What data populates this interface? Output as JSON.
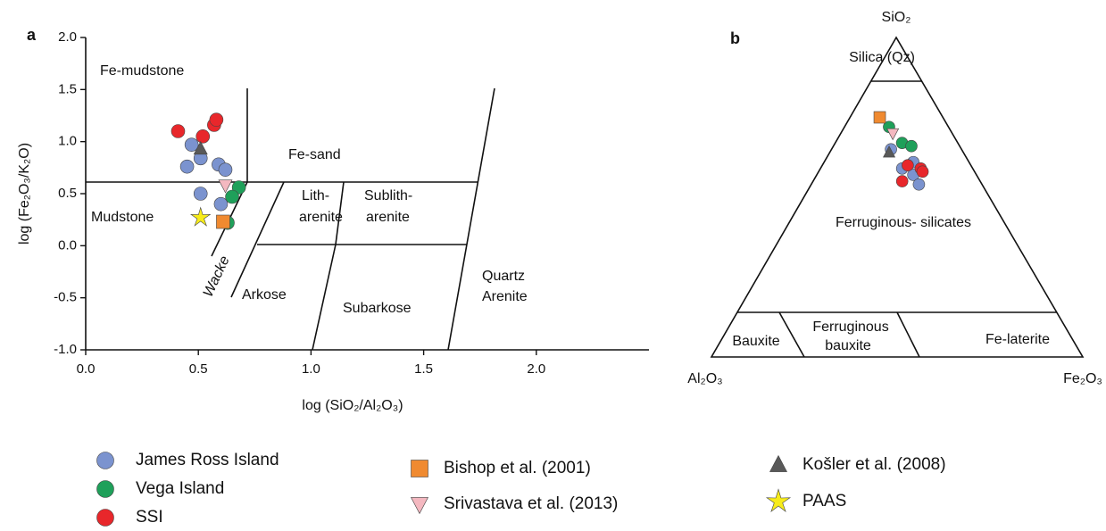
{
  "chart_data": [
    {
      "type": "scatter",
      "panel": "a",
      "xlabel": "log (SiO₂/Al₂O₃)",
      "ylabel": "log (Fe₂O₃/K₂O)",
      "xlim": [
        0,
        2.5
      ],
      "ylim": [
        -1.0,
        2.0
      ],
      "xticks": [
        {
          "value": 0,
          "label": "0.0"
        },
        0.5,
        {
          "value": 1,
          "label": "1.0"
        },
        1.5,
        {
          "value": 2,
          "label": "2.0"
        }
      ],
      "yticks": [
        {
          "value": 2,
          "label": "2.0"
        },
        1.5,
        {
          "value": 1,
          "label": "1.0"
        },
        0.5,
        {
          "value": 0,
          "label": "0.0"
        },
        -0.5,
        {
          "value": -1,
          "label": "-1.0"
        }
      ],
      "annotations": [
        "Fe-mudstone",
        "Fe-sand",
        "Mudstone",
        [
          "Lith-",
          "arenite"
        ],
        [
          "Sublith-",
          "arenite"
        ],
        "Wacke",
        "Arkose",
        "Subarkose",
        [
          "Quartz",
          "Arenite"
        ]
      ],
      "series": [
        {
          "name": "James Ross Island",
          "color": "#7b93cf",
          "marker": "circle",
          "x": [
            0.47,
            0.51,
            0.45,
            0.59,
            0.62,
            0.51,
            0.6
          ],
          "y": [
            0.97,
            0.84,
            0.76,
            0.78,
            0.73,
            0.5,
            0.4
          ]
        },
        {
          "name": "Vega Island",
          "color": "#1fa05a",
          "marker": "circle",
          "x": [
            0.68,
            0.65,
            0.63
          ],
          "y": [
            0.56,
            0.47,
            0.22
          ]
        },
        {
          "name": "SSI",
          "color": "#e8272b",
          "marker": "circle",
          "x": [
            0.41,
            0.52,
            0.57,
            0.58
          ],
          "y": [
            1.1,
            1.05,
            1.16,
            1.21
          ]
        },
        {
          "name": "Bishop et al. (2001)",
          "color": "#f08a30",
          "marker": "square",
          "x": [
            0.61
          ],
          "y": [
            0.23
          ]
        },
        {
          "name": "Srivastava et al. (2013)",
          "color": "#f4b8c0",
          "marker": "triangle-down",
          "x": [
            0.62
          ],
          "y": [
            0.58
          ]
        },
        {
          "name": "Košler et al. (2008)",
          "color": "#595959",
          "marker": "triangle",
          "x": [
            0.51
          ],
          "y": [
            0.93
          ]
        },
        {
          "name": "PAAS",
          "color": "#f7ec1a",
          "marker": "star",
          "x": [
            0.51
          ],
          "y": [
            0.27
          ]
        }
      ]
    },
    {
      "type": "ternary",
      "panel": "b",
      "vertices": [
        "SiO₂",
        "Al₂O₃",
        "Fe₂O₃"
      ],
      "annotations": [
        "Silica (Qz)",
        "Ferruginous- silicates",
        "Bauxite",
        [
          "Ferruginous",
          "bauxite"
        ],
        "Fe-laterite"
      ],
      "series": [
        {
          "color": "#7b93cf",
          "marker": "circle",
          "sio2": [
            0.65,
            0.61,
            0.59,
            0.57,
            0.54
          ],
          "al2o3": [
            0.19,
            0.15,
            0.19,
            0.17,
            0.17
          ],
          "fe2o3": [
            0.16,
            0.24,
            0.22,
            0.26,
            0.29
          ]
        },
        {
          "color": "#1fa05a",
          "marker": "circle",
          "sio2": [
            0.72,
            0.67,
            0.66
          ],
          "al2o3": [
            0.16,
            0.15,
            0.13
          ],
          "fe2o3": [
            0.12,
            0.18,
            0.21
          ]
        },
        {
          "color": "#e8272b",
          "marker": "circle",
          "sio2": [
            0.59,
            0.55,
            0.58,
            0.6
          ],
          "al2o3": [
            0.14,
            0.21,
            0.14,
            0.17
          ],
          "fe2o3": [
            0.27,
            0.24,
            0.28,
            0.23
          ]
        },
        {
          "color": "#f08a30",
          "marker": "square",
          "sio2": [
            0.75
          ],
          "al2o3": [
            0.17
          ],
          "fe2o3": [
            0.08
          ]
        },
        {
          "color": "#f4b8c0",
          "marker": "triangle-down",
          "sio2": [
            0.7
          ],
          "al2o3": [
            0.16
          ],
          "fe2o3": [
            0.14
          ]
        },
        {
          "color": "#595959",
          "marker": "triangle",
          "sio2": [
            0.64
          ],
          "al2o3": [
            0.2
          ],
          "fe2o3": [
            0.16
          ]
        }
      ]
    }
  ]
}
